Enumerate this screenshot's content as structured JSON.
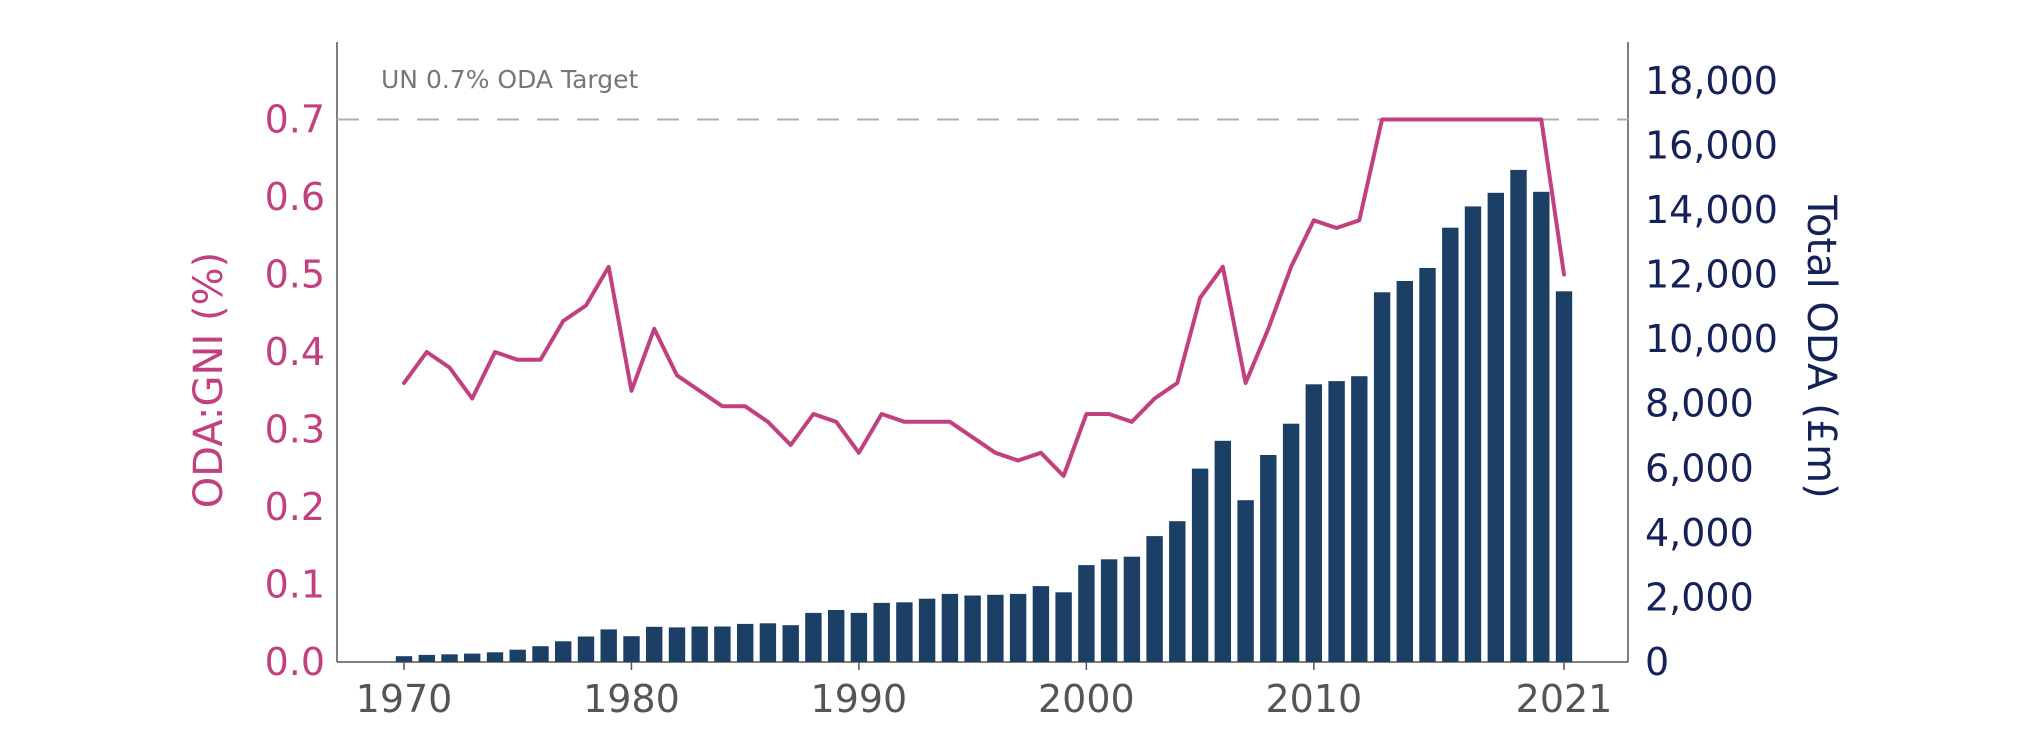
{
  "chart_data": {
    "type": "bar+line",
    "x_ticks": [
      "1970",
      "1980",
      "1990",
      "2000",
      "2010",
      "2021"
    ],
    "left_axis": {
      "label": "ODA:GNI (%)",
      "range": [
        0,
        0.8
      ],
      "ticks": [
        "0.0",
        "0.1",
        "0.2",
        "0.3",
        "0.4",
        "0.5",
        "0.6",
        "0.7"
      ],
      "color": "#c2407f"
    },
    "right_axis": {
      "label": "Total ODA (£m)",
      "range": [
        0,
        19200
      ],
      "ticks": [
        "0",
        "2,000",
        "4,000",
        "6,000",
        "8,000",
        "10,000",
        "12,000",
        "14,000",
        "16,000",
        "18,000"
      ],
      "color": "#142259"
    },
    "target": {
      "label": "UN 0.7% ODA Target",
      "value": 0.7
    },
    "years": [
      1970,
      1971,
      1972,
      1973,
      1974,
      1975,
      1976,
      1977,
      1978,
      1979,
      1980,
      1981,
      1982,
      1983,
      1984,
      1985,
      1986,
      1987,
      1988,
      1989,
      1990,
      1991,
      1992,
      1993,
      1994,
      1995,
      1996,
      1997,
      1998,
      1999,
      2000,
      2001,
      2002,
      2003,
      2004,
      2005,
      2006,
      2007,
      2008,
      2009,
      2010,
      2011,
      2012,
      2013,
      2014,
      2015,
      2016,
      2017,
      2018,
      2019,
      2020,
      2021
    ],
    "series": [
      {
        "type": "bar",
        "axis": "right",
        "color": "#1c3f66",
        "values": [
          180,
          220,
          240,
          260,
          300,
          380,
          490,
          640,
          790,
          1010,
          800,
          1090,
          1070,
          1100,
          1100,
          1180,
          1200,
          1140,
          1520,
          1610,
          1520,
          1830,
          1850,
          1960,
          2110,
          2060,
          2080,
          2110,
          2350,
          2160,
          3000,
          3180,
          3260,
          3900,
          4360,
          5990,
          6850,
          5010,
          6410,
          7380,
          8600,
          8700,
          8850,
          11450,
          11800,
          12200,
          13450,
          14110,
          14530,
          15240,
          14560,
          11480
        ]
      },
      {
        "type": "line",
        "axis": "left",
        "color": "#c2407f",
        "values": [
          0.36,
          0.4,
          0.38,
          0.34,
          0.4,
          0.39,
          0.39,
          0.44,
          0.46,
          0.51,
          0.35,
          0.43,
          0.37,
          0.35,
          0.33,
          0.33,
          0.31,
          0.28,
          0.32,
          0.31,
          0.27,
          0.32,
          0.31,
          0.31,
          0.31,
          0.29,
          0.27,
          0.26,
          0.27,
          0.24,
          0.32,
          0.32,
          0.31,
          0.34,
          0.36,
          0.47,
          0.51,
          0.36,
          0.43,
          0.51,
          0.57,
          0.56,
          0.57,
          0.7,
          0.7,
          0.7,
          0.7,
          0.7,
          0.7,
          0.7,
          0.7,
          0.5
        ]
      }
    ]
  }
}
